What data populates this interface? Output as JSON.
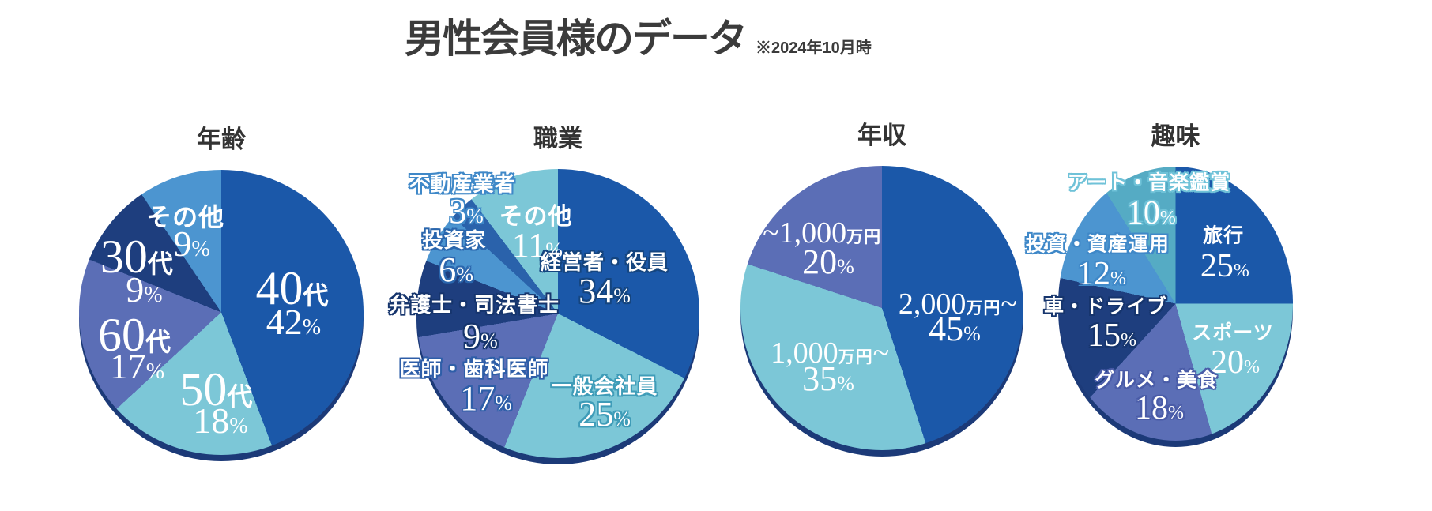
{
  "page": {
    "title": "男性会員様のデータ",
    "subtitle": "※2024年10月時"
  },
  "palette": {
    "dark_blue": "#1b58a9",
    "light_teal": "#7cc7d7",
    "slate_purple": "#5b6eb6",
    "dark_navy": "#1e3e7e",
    "sky_blue": "#4c95d0",
    "medium_teal": "#55abc4",
    "realtor_blue": "#2a62ab",
    "rim_shadow": "#1c3a78",
    "title_text": "#3b3b3b",
    "label_text": "#ffffff"
  },
  "chart_data": [
    {
      "type": "pie",
      "title": "年齢",
      "unit": "%",
      "start_angle_deg": 0,
      "direction": "clockwise",
      "legend": "labels-on-slices",
      "slices": [
        {
          "label": "40代",
          "value": 42,
          "color": "#1b58a9",
          "outline": null,
          "parts": {
            "pre": "",
            "serif": "40",
            "sans": "代",
            "post": ""
          }
        },
        {
          "label": "50代",
          "value": 18,
          "color": "#7cc7d7",
          "outline": null,
          "parts": {
            "pre": "",
            "serif": "50",
            "sans": "代",
            "post": ""
          }
        },
        {
          "label": "60代",
          "value": 17,
          "color": "#5b6eb6",
          "outline": null,
          "parts": {
            "pre": "",
            "serif": "60",
            "sans": "代",
            "post": ""
          }
        },
        {
          "label": "30代",
          "value": 9,
          "color": "#1e3e7e",
          "outline": null,
          "parts": {
            "pre": "",
            "serif": "30",
            "sans": "代",
            "post": ""
          }
        },
        {
          "label": "その他",
          "value": 9,
          "color": "#4c95d0",
          "outline": null,
          "parts": {
            "pre": "",
            "serif": "",
            "sans": "その他",
            "post": ""
          }
        }
      ]
    },
    {
      "type": "pie",
      "title": "職業",
      "unit": "%",
      "start_angle_deg": 0,
      "direction": "clockwise",
      "legend": "labels-on-slices",
      "slices": [
        {
          "label": "経営者・役員",
          "value": 34,
          "color": "#1b58a9",
          "outline": "#15457f",
          "parts": {
            "pre": "",
            "serif": "",
            "sans": "経営者・役員",
            "post": ""
          }
        },
        {
          "label": "一般会社員",
          "value": 25,
          "color": "#7cc7d7",
          "outline": "#3f9cb8",
          "parts": {
            "pre": "",
            "serif": "",
            "sans": "一般会社員",
            "post": ""
          }
        },
        {
          "label": "医師・歯科医師",
          "value": 17,
          "color": "#5b6eb6",
          "outline": "#2e5ea8",
          "parts": {
            "pre": "",
            "serif": "",
            "sans": "医師・歯科医師",
            "post": ""
          }
        },
        {
          "label": "弁護士・司法書士",
          "value": 9,
          "color": "#1e3e7e",
          "outline": "#16356d",
          "parts": {
            "pre": "",
            "serif": "",
            "sans": "弁護士・司法書士",
            "post": ""
          }
        },
        {
          "label": "投資家",
          "value": 6,
          "color": "#4c95d0",
          "outline": "#2a66ad",
          "parts": {
            "pre": "",
            "serif": "",
            "sans": "投資家",
            "post": ""
          }
        },
        {
          "label": "不動産業者",
          "value": 3,
          "color": "#2a62ab",
          "outline": "#3f88c8",
          "parts": {
            "pre": "",
            "serif": "",
            "sans": "不動産業者",
            "post": ""
          }
        },
        {
          "label": "その他",
          "value": 11,
          "color": "#7cc7d7",
          "outline": null,
          "parts": {
            "pre": "",
            "serif": "",
            "sans": "その他",
            "post": ""
          }
        }
      ]
    },
    {
      "type": "pie",
      "title": "年収",
      "unit": "%",
      "start_angle_deg": 0,
      "direction": "clockwise",
      "legend": "labels-on-slices",
      "slices": [
        {
          "label": "2,000万円~",
          "value": 45,
          "color": "#1b58a9",
          "outline": null,
          "parts": {
            "pre": "",
            "serif": "2,000",
            "sans": "万円",
            "post": "~"
          }
        },
        {
          "label": "1,000万円~",
          "value": 35,
          "color": "#7cc7d7",
          "outline": null,
          "parts": {
            "pre": "",
            "serif": "1,000",
            "sans": "万円",
            "post": "~"
          }
        },
        {
          "label": "~1,000万円",
          "value": 20,
          "color": "#5b6eb6",
          "outline": null,
          "parts": {
            "pre": "~",
            "serif": "1,000",
            "sans": "万円",
            "post": ""
          }
        }
      ]
    },
    {
      "type": "pie",
      "title": "趣味",
      "unit": "%",
      "start_angle_deg": 0,
      "direction": "clockwise",
      "legend": "labels-on-slices",
      "slices": [
        {
          "label": "旅行",
          "value": 25,
          "color": "#1b58a9",
          "outline": null,
          "parts": {
            "pre": "",
            "serif": "",
            "sans": "旅行",
            "post": ""
          }
        },
        {
          "label": "スポーツ",
          "value": 20,
          "color": "#7cc7d7",
          "outline": null,
          "parts": {
            "pre": "",
            "serif": "",
            "sans": "スポーツ",
            "post": ""
          }
        },
        {
          "label": "グルメ・美食",
          "value": 18,
          "color": "#5b6eb6",
          "outline": "#4a5ca8",
          "parts": {
            "pre": "",
            "serif": "",
            "sans": "グルメ・美食",
            "post": ""
          }
        },
        {
          "label": "車・ドライブ",
          "value": 15,
          "color": "#1e3e7e",
          "outline": "#16356d",
          "parts": {
            "pre": "",
            "serif": "",
            "sans": "車・ドライブ",
            "post": ""
          }
        },
        {
          "label": "投資・資産運用",
          "value": 12,
          "color": "#4c95d0",
          "outline": "#3f88c8",
          "parts": {
            "pre": "",
            "serif": "",
            "sans": "投資・資産運用",
            "post": ""
          }
        },
        {
          "label": "アート・音楽鑑賞",
          "value": 10,
          "color": "#55abc4",
          "outline": "#6fc2d8",
          "parts": {
            "pre": "",
            "serif": "",
            "sans": "アート・音楽鑑賞",
            "post": ""
          }
        }
      ]
    }
  ]
}
